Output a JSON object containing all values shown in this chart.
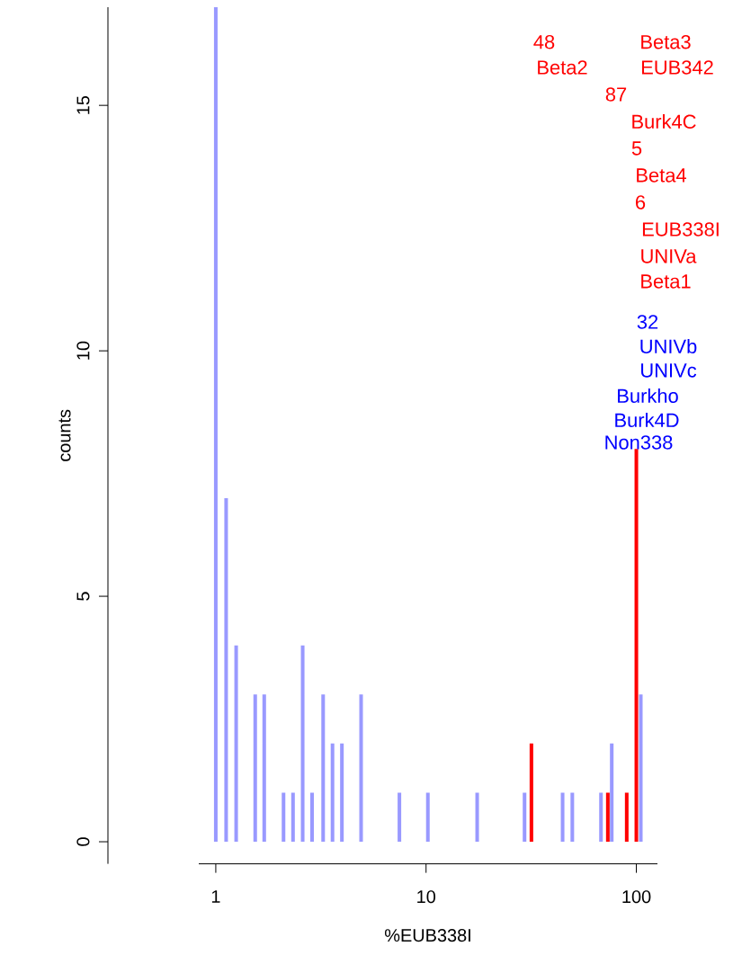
{
  "chart_data": {
    "type": "bar",
    "xlabel": "%EUB338I",
    "ylabel": "counts",
    "log": "x",
    "xlim": [
      0.83,
      126
    ],
    "ylim": [
      -0.45,
      17
    ],
    "xticks": [
      1,
      10,
      100
    ],
    "yticks": [
      0,
      5,
      10,
      15
    ],
    "series": [
      {
        "color": "#9999ff",
        "x": [
          1,
          1.12,
          1.25,
          1.54,
          1.7,
          2.1,
          2.33,
          2.59,
          2.87,
          3.24,
          3.59,
          3.98,
          4.91,
          7.47,
          10.2,
          17.5,
          29.4,
          44.6,
          49.6,
          67.9,
          76.4,
          105
        ],
        "values": [
          17,
          7,
          4,
          3,
          3,
          1,
          1,
          4,
          1,
          3,
          2,
          2,
          3,
          1,
          1,
          1,
          1,
          1,
          1,
          1,
          2,
          3
        ]
      },
      {
        "color": "#ff0000",
        "x": [
          31.7,
          73.2,
          90,
          100
        ],
        "values": [
          2,
          1,
          1,
          8
        ]
      }
    ],
    "annotations": [
      "48",
      "Beta2",
      "Beta3",
      "EUB342",
      "87",
      "Burk4C",
      "5",
      "Beta4",
      "6",
      "EUB338I",
      "UNIVa",
      "Beta1",
      "32",
      "UNIVb",
      "UNIVc",
      "Burkho",
      "Burk4D",
      "Non338"
    ]
  }
}
